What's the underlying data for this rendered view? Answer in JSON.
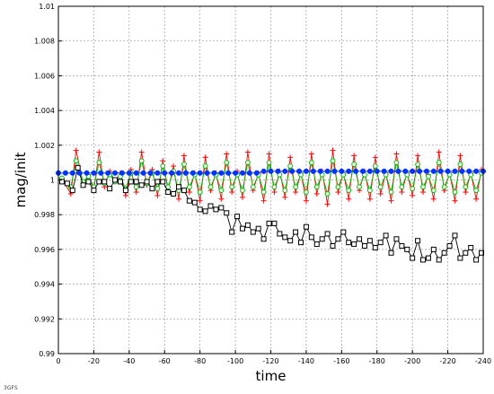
{
  "chart_data": {
    "type": "line",
    "title": "",
    "xlabel": "time",
    "ylabel": "mag/init",
    "xlim": [
      0,
      -240
    ],
    "ylim": [
      0.99,
      1.01
    ],
    "x_ticks": [
      0,
      -20,
      -40,
      -60,
      -80,
      -100,
      -120,
      -140,
      -160,
      -180,
      -200,
      -220,
      -240
    ],
    "y_ticks": [
      0.99,
      0.992,
      0.994,
      0.996,
      0.998,
      1,
      1.002,
      1.004,
      1.006,
      1.008,
      1.01
    ],
    "y_tick_labels": [
      "0.99",
      "0.992",
      "0.994",
      "0.996",
      "0.998",
      "1",
      "1.002",
      "1.004",
      "1.006",
      "1.008",
      "1.01"
    ],
    "grid": true,
    "corner_text": "3GFS",
    "series": [
      {
        "color": "#ff0000",
        "marker": "plus",
        "points": [
          [
            -2,
            1.0001
          ],
          [
            -7,
            0.9992
          ],
          [
            -10,
            1.0017
          ],
          [
            -14,
            0.9998
          ],
          [
            -17,
            1.0003
          ],
          [
            -20,
            0.9994
          ],
          [
            -23,
            1.0016
          ],
          [
            -26,
            0.9996
          ],
          [
            -29,
            1.0005
          ],
          [
            -32,
            0.9999
          ],
          [
            -35,
            1.0004
          ],
          [
            -38,
            0.9991
          ],
          [
            -41,
            1.0006
          ],
          [
            -44,
            0.9993
          ],
          [
            -47,
            1.0016
          ],
          [
            -50,
            0.9997
          ],
          [
            -53,
            1.0006
          ],
          [
            -56,
            0.9991
          ],
          [
            -59,
            1.0011
          ],
          [
            -62,
            0.9994
          ],
          [
            -65,
            1.0008
          ],
          [
            -68,
            0.9989
          ],
          [
            -71,
            1.0014
          ],
          [
            -74,
            0.9993
          ],
          [
            -77,
            1.0004
          ],
          [
            -80,
            0.9988
          ],
          [
            -83,
            1.0013
          ],
          [
            -86,
            0.9994
          ],
          [
            -89,
            1.0004
          ],
          [
            -92,
            0.9989
          ],
          [
            -95,
            1.0015
          ],
          [
            -98,
            0.9993
          ],
          [
            -101,
            1.0005
          ],
          [
            -104,
            0.999
          ],
          [
            -107,
            1.0016
          ],
          [
            -110,
            0.9994
          ],
          [
            -113,
            1.0004
          ],
          [
            -116,
            0.9988
          ],
          [
            -119,
            1.0015
          ],
          [
            -122,
            0.9993
          ],
          [
            -125,
            1.0005
          ],
          [
            -128,
            0.999
          ],
          [
            -131,
            1.0013
          ],
          [
            -134,
            0.9993
          ],
          [
            -137,
            1.0004
          ],
          [
            -140,
            0.9988
          ],
          [
            -143,
            1.0015
          ],
          [
            -146,
            0.9992
          ],
          [
            -149,
            1.0005
          ],
          [
            -152,
            0.9986
          ],
          [
            -155,
            1.0017
          ],
          [
            -158,
            0.9993
          ],
          [
            -161,
            1.0004
          ],
          [
            -164,
            0.9989
          ],
          [
            -167,
            1.0014
          ],
          [
            -170,
            0.9994
          ],
          [
            -173,
            1.0005
          ],
          [
            -176,
            0.9989
          ],
          [
            -179,
            1.0013
          ],
          [
            -182,
            0.9992
          ],
          [
            -185,
            1.0004
          ],
          [
            -188,
            0.9988
          ],
          [
            -191,
            1.0015
          ],
          [
            -194,
            0.9993
          ],
          [
            -197,
            1.0004
          ],
          [
            -200,
            0.9991
          ],
          [
            -203,
            1.0014
          ],
          [
            -206,
            0.9993
          ],
          [
            -209,
            1.0003
          ],
          [
            -212,
            0.9989
          ],
          [
            -215,
            1.0016
          ],
          [
            -218,
            0.9994
          ],
          [
            -221,
            1.0004
          ],
          [
            -224,
            0.9988
          ],
          [
            -227,
            1.0014
          ],
          [
            -230,
            0.9993
          ],
          [
            -233,
            1.0004
          ],
          [
            -236,
            0.9989
          ],
          [
            -239,
            1.0006
          ]
        ]
      },
      {
        "color": "#00bb00",
        "marker": "circle",
        "points": [
          [
            -2,
            1.0001
          ],
          [
            -7,
            0.9996
          ],
          [
            -10,
            1.0011
          ],
          [
            -14,
            0.9999
          ],
          [
            -17,
            1.0002
          ],
          [
            -20,
            0.9996
          ],
          [
            -23,
            1.001
          ],
          [
            -26,
            0.9998
          ],
          [
            -29,
            1.0003
          ],
          [
            -32,
            0.9999
          ],
          [
            -35,
            1.0002
          ],
          [
            -38,
            0.9995
          ],
          [
            -41,
            1.0004
          ],
          [
            -44,
            0.9996
          ],
          [
            -47,
            1.0011
          ],
          [
            -50,
            0.9998
          ],
          [
            -53,
            1.0004
          ],
          [
            -56,
            0.9995
          ],
          [
            -59,
            1.0008
          ],
          [
            -62,
            0.9996
          ],
          [
            -65,
            1.0005
          ],
          [
            -68,
            0.9994
          ],
          [
            -71,
            1.0009
          ],
          [
            -74,
            0.9996
          ],
          [
            -77,
            1.0003
          ],
          [
            -80,
            0.9993
          ],
          [
            -83,
            1.0008
          ],
          [
            -86,
            0.9996
          ],
          [
            -89,
            1.0003
          ],
          [
            -92,
            0.9994
          ],
          [
            -95,
            1.001
          ],
          [
            -98,
            0.9996
          ],
          [
            -101,
            1.0003
          ],
          [
            -104,
            0.9994
          ],
          [
            -107,
            1.001
          ],
          [
            -110,
            0.9996
          ],
          [
            -113,
            1.0003
          ],
          [
            -116,
            0.9993
          ],
          [
            -119,
            1.001
          ],
          [
            -122,
            0.9996
          ],
          [
            -125,
            1.0003
          ],
          [
            -128,
            0.9994
          ],
          [
            -131,
            1.0008
          ],
          [
            -134,
            0.9996
          ],
          [
            -137,
            1.0003
          ],
          [
            -140,
            0.9993
          ],
          [
            -143,
            1.001
          ],
          [
            -146,
            0.9996
          ],
          [
            -149,
            1.0003
          ],
          [
            -152,
            0.9992
          ],
          [
            -155,
            1.0011
          ],
          [
            -158,
            0.9996
          ],
          [
            -161,
            1.0003
          ],
          [
            -164,
            0.9994
          ],
          [
            -167,
            1.0009
          ],
          [
            -170,
            0.9996
          ],
          [
            -173,
            1.0003
          ],
          [
            -176,
            0.9994
          ],
          [
            -179,
            1.0008
          ],
          [
            -182,
            0.9996
          ],
          [
            -185,
            1.0003
          ],
          [
            -188,
            0.9993
          ],
          [
            -191,
            1.001
          ],
          [
            -194,
            0.9996
          ],
          [
            -197,
            1.0003
          ],
          [
            -200,
            0.9995
          ],
          [
            -203,
            1.0009
          ],
          [
            -206,
            0.9996
          ],
          [
            -209,
            1.0002
          ],
          [
            -212,
            0.9994
          ],
          [
            -215,
            1.001
          ],
          [
            -218,
            0.9996
          ],
          [
            -221,
            1.0003
          ],
          [
            -224,
            0.9993
          ],
          [
            -227,
            1.0009
          ],
          [
            -230,
            0.9996
          ],
          [
            -233,
            1.0003
          ],
          [
            -236,
            0.9994
          ],
          [
            -239,
            1.0004
          ]
        ]
      },
      {
        "color": "#000000",
        "marker": "square",
        "points": [
          [
            -2,
            0.9999
          ],
          [
            -5,
            0.9998
          ],
          [
            -8,
            0.9994
          ],
          [
            -11,
            1.0007
          ],
          [
            -14,
            0.9997
          ],
          [
            -17,
            0.9999
          ],
          [
            -20,
            0.9994
          ],
          [
            -23,
            0.9999
          ],
          [
            -26,
            0.9999
          ],
          [
            -29,
            0.9995
          ],
          [
            -32,
            1.0
          ],
          [
            -35,
            0.9999
          ],
          [
            -38,
            0.9994
          ],
          [
            -41,
            0.9999
          ],
          [
            -44,
            0.9999
          ],
          [
            -47,
            0.9997
          ],
          [
            -50,
            0.9999
          ],
          [
            -53,
            0.9995
          ],
          [
            -56,
            0.9999
          ],
          [
            -59,
            0.9999
          ],
          [
            -62,
            0.9993
          ],
          [
            -65,
            0.9992
          ],
          [
            -68,
            0.9996
          ],
          [
            -71,
            0.9994
          ],
          [
            -74,
            0.9988
          ],
          [
            -77,
            0.9987
          ],
          [
            -80,
            0.9983
          ],
          [
            -83,
            0.9982
          ],
          [
            -86,
            0.9985
          ],
          [
            -89,
            0.9983
          ],
          [
            -92,
            0.9984
          ],
          [
            -95,
            0.9981
          ],
          [
            -98,
            0.997
          ],
          [
            -101,
            0.9979
          ],
          [
            -104,
            0.9972
          ],
          [
            -107,
            0.9974
          ],
          [
            -110,
            0.997
          ],
          [
            -113,
            0.9972
          ],
          [
            -116,
            0.9966
          ],
          [
            -119,
            0.9975
          ],
          [
            -122,
            0.9975
          ],
          [
            -125,
            0.9969
          ],
          [
            -128,
            0.9967
          ],
          [
            -131,
            0.9965
          ],
          [
            -134,
            0.997
          ],
          [
            -137,
            0.9964
          ],
          [
            -140,
            0.9973
          ],
          [
            -143,
            0.9967
          ],
          [
            -146,
            0.9963
          ],
          [
            -149,
            0.9966
          ],
          [
            -152,
            0.9969
          ],
          [
            -155,
            0.9962
          ],
          [
            -158,
            0.9966
          ],
          [
            -161,
            0.997
          ],
          [
            -164,
            0.9964
          ],
          [
            -167,
            0.9963
          ],
          [
            -170,
            0.9966
          ],
          [
            -173,
            0.9962
          ],
          [
            -176,
            0.9965
          ],
          [
            -179,
            0.9961
          ],
          [
            -182,
            0.9964
          ],
          [
            -185,
            0.9968
          ],
          [
            -188,
            0.9958
          ],
          [
            -191,
            0.9966
          ],
          [
            -194,
            0.9962
          ],
          [
            -197,
            0.996
          ],
          [
            -200,
            0.9955
          ],
          [
            -203,
            0.9965
          ],
          [
            -206,
            0.9954
          ],
          [
            -209,
            0.9955
          ],
          [
            -212,
            0.996
          ],
          [
            -215,
            0.9954
          ],
          [
            -218,
            0.9958
          ],
          [
            -221,
            0.9962
          ],
          [
            -224,
            0.9968
          ],
          [
            -227,
            0.9955
          ],
          [
            -230,
            0.9958
          ],
          [
            -233,
            0.9961
          ],
          [
            -236,
            0.9954
          ],
          [
            -239,
            0.9958
          ]
        ]
      },
      {
        "color": "#0033ff",
        "marker": "filled-circle",
        "points": [
          [
            0,
            1.0004
          ],
          [
            -4,
            1.0004
          ],
          [
            -8,
            1.0004
          ],
          [
            -12,
            1.0004
          ],
          [
            -16,
            1.0004
          ],
          [
            -20,
            1.0004
          ],
          [
            -24,
            1.0004
          ],
          [
            -28,
            1.0004
          ],
          [
            -32,
            1.0004
          ],
          [
            -36,
            1.0004
          ],
          [
            -40,
            1.0004
          ],
          [
            -44,
            1.0004
          ],
          [
            -48,
            1.0004
          ],
          [
            -52,
            1.0004
          ],
          [
            -56,
            1.0004
          ],
          [
            -60,
            1.0004
          ],
          [
            -64,
            1.0004
          ],
          [
            -68,
            1.0004
          ],
          [
            -72,
            1.0004
          ],
          [
            -76,
            1.0004
          ],
          [
            -80,
            1.0004
          ],
          [
            -84,
            1.0004
          ],
          [
            -88,
            1.0004
          ],
          [
            -92,
            1.0004
          ],
          [
            -96,
            1.0004
          ],
          [
            -100,
            1.0004
          ],
          [
            -104,
            1.0004
          ],
          [
            -108,
            1.0004
          ],
          [
            -112,
            1.0004
          ],
          [
            -116,
            1.0005
          ],
          [
            -120,
            1.0005
          ],
          [
            -124,
            1.0005
          ],
          [
            -128,
            1.0005
          ],
          [
            -132,
            1.0005
          ],
          [
            -136,
            1.0005
          ],
          [
            -140,
            1.0005
          ],
          [
            -144,
            1.0005
          ],
          [
            -148,
            1.0005
          ],
          [
            -152,
            1.0005
          ],
          [
            -156,
            1.0005
          ],
          [
            -160,
            1.0005
          ],
          [
            -164,
            1.0005
          ],
          [
            -168,
            1.0005
          ],
          [
            -172,
            1.0005
          ],
          [
            -176,
            1.0005
          ],
          [
            -180,
            1.0005
          ],
          [
            -184,
            1.0005
          ],
          [
            -188,
            1.0005
          ],
          [
            -192,
            1.0005
          ],
          [
            -196,
            1.0005
          ],
          [
            -200,
            1.0005
          ],
          [
            -204,
            1.0005
          ],
          [
            -208,
            1.0005
          ],
          [
            -212,
            1.0005
          ],
          [
            -216,
            1.0005
          ],
          [
            -220,
            1.0005
          ],
          [
            -224,
            1.0005
          ],
          [
            -228,
            1.0005
          ],
          [
            -232,
            1.0005
          ],
          [
            -236,
            1.0005
          ],
          [
            -240,
            1.0005
          ]
        ]
      }
    ]
  }
}
